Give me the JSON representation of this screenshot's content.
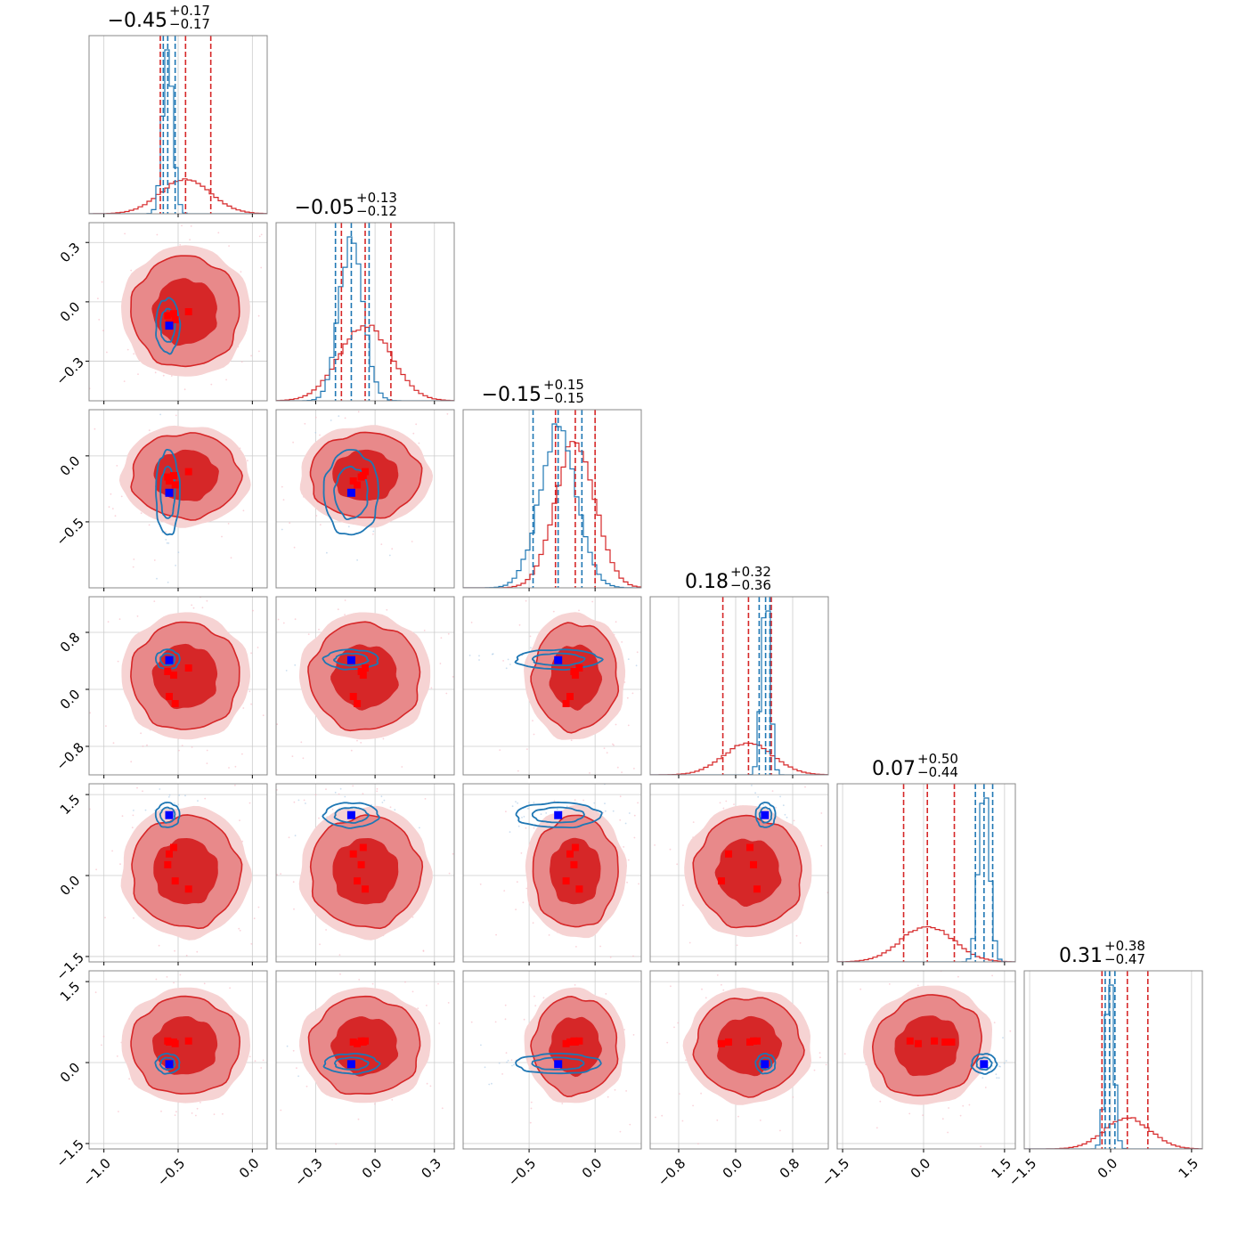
{
  "colors": {
    "red": "#d62728",
    "red_mid": "#e8898a",
    "red_light": "#f6d3d3",
    "blue": "#1f77b4",
    "marker_red": "#ff0000",
    "marker_blue": "#0000ff",
    "grid": "#cccccc",
    "frame": "#888888"
  },
  "chart_data": {
    "type": "scatter",
    "subtype": "corner plot (pairwise posterior densities with marginal histograms)",
    "grid": true,
    "series": [
      {
        "color": "red",
        "style": "filled density contours + step histograms"
      },
      {
        "color": "blue",
        "style": "line density contours + step histograms"
      }
    ],
    "dimensions": [
      {
        "range": [
          -1.1,
          0.1
        ],
        "ticks": [
          -1.0,
          -0.5,
          0.0
        ],
        "tick_labels": [
          "−1.0",
          "−0.5",
          "0.0"
        ],
        "title": {
          "main": "−0.45",
          "plus": "+0.17",
          "minus": "−0.17"
        },
        "red": {
          "mean": -0.45,
          "sd": 0.17,
          "q": [
            -0.62,
            -0.45,
            -0.28
          ]
        },
        "blue": {
          "mean": -0.57,
          "sd": 0.035,
          "q": [
            -0.6,
            -0.57,
            -0.52
          ]
        }
      },
      {
        "range": [
          -0.5,
          0.4
        ],
        "ticks": [
          -0.3,
          0.0,
          0.3
        ],
        "tick_labels": [
          "−0.3",
          "0.0",
          "0.3"
        ],
        "title": {
          "main": "−0.05",
          "plus": "+0.13",
          "minus": "−0.12"
        },
        "red": {
          "mean": -0.05,
          "sd": 0.13,
          "q": [
            -0.17,
            -0.05,
            0.08
          ]
        },
        "blue": {
          "mean": -0.12,
          "sd": 0.06,
          "q": [
            -0.2,
            -0.12,
            -0.03
          ]
        }
      },
      {
        "range": [
          -1.0,
          0.35
        ],
        "ticks": [
          -0.5,
          0.0
        ],
        "tick_labels": [
          "−0.5",
          "0.0"
        ],
        "title": {
          "main": "−0.15",
          "plus": "+0.15",
          "minus": "−0.15"
        },
        "red": {
          "mean": -0.15,
          "sd": 0.15,
          "q": [
            -0.3,
            -0.15,
            0.0
          ]
        },
        "blue": {
          "mean": -0.28,
          "sd": 0.14,
          "q": [
            -0.47,
            -0.28,
            -0.1
          ]
        }
      },
      {
        "range": [
          -1.2,
          1.3
        ],
        "ticks": [
          -0.8,
          0.0,
          0.8
        ],
        "tick_labels": [
          "−0.8",
          "0.0",
          "0.8"
        ],
        "title": {
          "main": "0.18",
          "plus": "+0.32",
          "minus": "−0.36"
        },
        "red": {
          "mean": 0.18,
          "sd": 0.35,
          "q": [
            -0.18,
            0.18,
            0.5
          ]
        },
        "blue": {
          "mean": 0.42,
          "sd": 0.06,
          "q": [
            0.33,
            0.42,
            0.48
          ]
        }
      },
      {
        "range": [
          -1.6,
          1.7
        ],
        "ticks": [
          -1.5,
          0.0,
          1.5
        ],
        "tick_labels": [
          "−1.5",
          "0.0",
          "1.5"
        ],
        "title": {
          "main": "0.07",
          "plus": "+0.50",
          "minus": "−0.44"
        },
        "red": {
          "mean": 0.07,
          "sd": 0.48,
          "q": [
            -0.37,
            0.07,
            0.57
          ]
        },
        "blue": {
          "mean": 1.12,
          "sd": 0.1,
          "q": [
            0.96,
            1.12,
            1.28
          ]
        }
      },
      {
        "range": [
          -1.6,
          1.7
        ],
        "ticks": [
          -1.5,
          0.0,
          1.5
        ],
        "tick_labels": [
          "−1.5",
          "0.0",
          "1.5"
        ],
        "title": {
          "main": "0.31",
          "plus": "+0.38",
          "minus": "−0.47"
        },
        "red": {
          "mean": 0.31,
          "sd": 0.42,
          "q": [
            -0.16,
            0.31,
            0.69
          ]
        },
        "blue": {
          "mean": -0.02,
          "sd": 0.08,
          "q": [
            -0.1,
            -0.02,
            0.08
          ]
        }
      }
    ],
    "markers": {
      "blue_point": [
        -0.56,
        -0.12,
        -0.28,
        0.41,
        1.12,
        -0.03
      ],
      "red_points": [
        [
          -0.53,
          -0.06,
          -0.15,
          0.2,
          0.52,
          0.38
        ],
        [
          -0.57,
          -0.07,
          -0.16,
          0.25,
          0.2,
          0.4
        ],
        [
          -0.43,
          -0.05,
          -0.12,
          0.3,
          -0.25,
          0.4
        ],
        [
          -0.52,
          -0.09,
          -0.22,
          -0.2,
          -0.1,
          0.35
        ],
        [
          -0.56,
          -0.11,
          -0.19,
          -0.1,
          0.4,
          0.38
        ]
      ]
    }
  }
}
